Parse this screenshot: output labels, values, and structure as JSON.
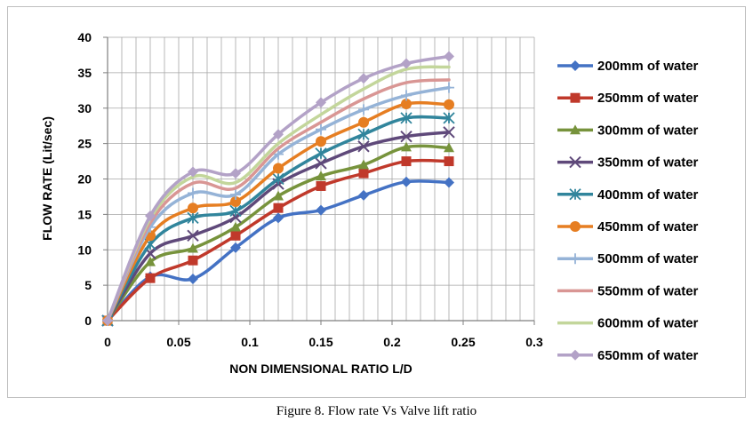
{
  "caption": "Figure 8. Flow rate Vs Valve lift ratio",
  "chart_data": {
    "type": "line",
    "xlabel": "NON DIMENSIONAL RATIO L/D",
    "ylabel": "FLOW RATE (Lit/sec)",
    "xlim": [
      0,
      0.3
    ],
    "ylim": [
      0,
      40
    ],
    "xticks": [
      0,
      0.05,
      0.1,
      0.15,
      0.2,
      0.25,
      0.3
    ],
    "xtick_labels": [
      "0",
      "0.05",
      "0.1",
      "0.15",
      "0.2",
      "0.25",
      "0.3"
    ],
    "yticks": [
      0,
      5,
      10,
      15,
      20,
      25,
      30,
      35,
      40
    ],
    "ytick_labels": [
      "0",
      "5",
      "10",
      "15",
      "20",
      "25",
      "30",
      "35",
      "40"
    ],
    "grid": true,
    "legend_position": "right",
    "x": [
      0,
      0.03,
      0.06,
      0.09,
      0.12,
      0.15,
      0.18,
      0.21,
      0.24
    ],
    "series": [
      {
        "name": "200mm of water",
        "color": "#4472c4",
        "marker": "diamond",
        "values": [
          0,
          6.2,
          5.9,
          10.3,
          14.5,
          15.6,
          17.7,
          19.6,
          19.5
        ]
      },
      {
        "name": "250mm of water",
        "color": "#c0392b",
        "marker": "square",
        "values": [
          0,
          6.0,
          8.5,
          12.0,
          15.9,
          19.0,
          20.8,
          22.5,
          22.5
        ]
      },
      {
        "name": "300mm of water",
        "color": "#77933c",
        "marker": "triangle",
        "values": [
          0,
          8.3,
          10.2,
          13.2,
          17.6,
          20.4,
          22.0,
          24.5,
          24.4
        ]
      },
      {
        "name": "350mm of water",
        "color": "#5f497a",
        "marker": "x",
        "values": [
          0,
          9.5,
          12.0,
          14.6,
          19.3,
          22.2,
          24.6,
          26.0,
          26.6
        ]
      },
      {
        "name": "400mm of water",
        "color": "#31859c",
        "marker": "star",
        "values": [
          0,
          10.8,
          14.5,
          15.5,
          20.0,
          23.6,
          26.3,
          28.6,
          28.6
        ]
      },
      {
        "name": "450mm of water",
        "color": "#e67e22",
        "marker": "circle",
        "values": [
          0,
          12.0,
          15.9,
          16.8,
          21.5,
          25.3,
          28.0,
          30.6,
          30.5
        ]
      },
      {
        "name": "500mm of water",
        "color": "#95b3d7",
        "marker": "plus",
        "values": [
          0,
          13.2,
          18.0,
          17.8,
          23.5,
          27.0,
          29.8,
          31.8,
          32.9
        ]
      },
      {
        "name": "550mm of water",
        "color": "#d99694",
        "marker": "none",
        "values": [
          0,
          13.8,
          19.4,
          18.7,
          24.3,
          28.0,
          31.3,
          33.6,
          34.0
        ]
      },
      {
        "name": "600mm of water",
        "color": "#c3d69b",
        "marker": "none",
        "values": [
          0,
          14.4,
          20.3,
          19.5,
          25.0,
          29.1,
          32.7,
          35.5,
          35.8
        ]
      },
      {
        "name": "650mm of water",
        "color": "#b3a2c7",
        "marker": "diamond",
        "values": [
          0,
          14.8,
          21.0,
          20.8,
          26.3,
          30.8,
          34.2,
          36.3,
          37.3
        ]
      }
    ]
  }
}
